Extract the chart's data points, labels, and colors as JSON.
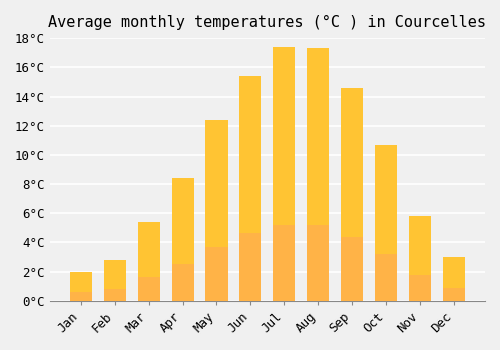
{
  "title": "Average monthly temperatures (°C ) in Courcelles",
  "months": [
    "Jan",
    "Feb",
    "Mar",
    "Apr",
    "May",
    "Jun",
    "Jul",
    "Aug",
    "Sep",
    "Oct",
    "Nov",
    "Dec"
  ],
  "values": [
    2.0,
    2.8,
    5.4,
    8.4,
    12.4,
    15.4,
    17.4,
    17.3,
    14.6,
    10.7,
    5.8,
    3.0
  ],
  "bar_color_top": "#FFC433",
  "bar_color_bottom": "#FFB347",
  "background_color": "#F0F0F0",
  "grid_color": "#FFFFFF",
  "ylim": [
    0,
    18
  ],
  "yticks": [
    0,
    2,
    4,
    6,
    8,
    10,
    12,
    14,
    16,
    18
  ],
  "title_fontsize": 11,
  "tick_fontsize": 9,
  "font_family": "monospace"
}
